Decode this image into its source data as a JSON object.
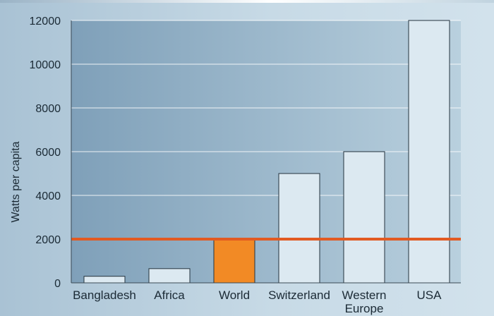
{
  "chart_data": {
    "type": "bar",
    "title": "",
    "xlabel": "",
    "ylabel": "Watts per capita",
    "ylim": [
      0,
      12000
    ],
    "yticks": [
      0,
      2000,
      4000,
      6000,
      8000,
      10000,
      12000
    ],
    "categories": [
      [
        "Bangladesh"
      ],
      [
        "Africa"
      ],
      [
        "World"
      ],
      [
        "Switzerland"
      ],
      [
        "Western",
        "Europe"
      ],
      [
        "USA"
      ]
    ],
    "values": [
      300,
      650,
      2000,
      5000,
      6000,
      12000
    ],
    "highlight_index": 2,
    "reference_line": {
      "value": 2000,
      "color": "#e25a22"
    },
    "grid": true,
    "colors": {
      "bar": "#dce9f1",
      "bar_highlight": "#f28a25",
      "bar_stroke": "#24323d",
      "grid": "#ffffff",
      "plot_bg_left": "#7fa0b9",
      "plot_bg_right": "#b9d0de"
    }
  }
}
